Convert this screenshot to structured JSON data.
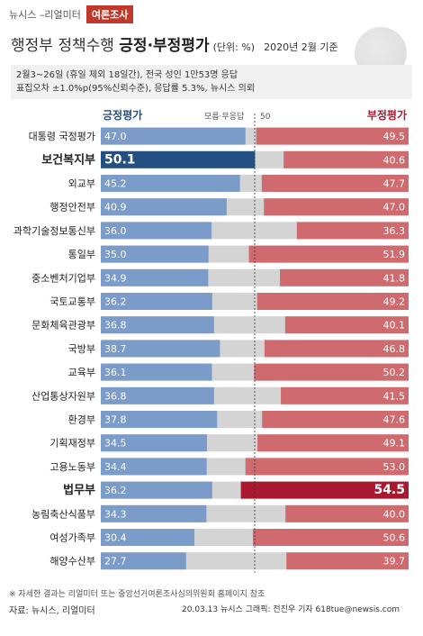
{
  "brand": "뉴시스 –리얼미터",
  "badge": "여론조사",
  "title": {
    "prefix": "행정부 정책수행 ",
    "highlight": "긍정·부정평가",
    "unit": "(단위: %)",
    "date": "2020년 2월 기준"
  },
  "info": {
    "line1": "2월3~26일 (휴일 제외 18일간), 전국 성인 1만53명 응답",
    "line2": "표집오차 ±1.0%p(95%신뢰수준), 응답률 5.3%, 뉴시스 의뢰"
  },
  "footer": {
    "note": "※ 자세한 결과는 리얼미터 또는 중앙선거여론조사심의위원회 홈페이지 참조",
    "source": "자료: 뉴시스, 리얼미터",
    "credit": "20.03.13 뉴시스 그래픽: 전진우 기자 618tue@newsis.com"
  },
  "colors": {
    "positive": "#7b9bc8",
    "positive_highlight": "#244f82",
    "negative": "#cf6b6e",
    "negative_highlight": "#a8182e",
    "neutral": "#d4d4d4"
  },
  "chart_data": {
    "type": "bar",
    "legend": {
      "positive": "긍정평가",
      "neutral": "모름·무응답",
      "negative": "부정평가",
      "midline": "50"
    },
    "categories": [
      "대통령 국정평가",
      "보건복지부",
      "외교부",
      "행정안전부",
      "과학기술정보통신부",
      "통일부",
      "중소벤처기업부",
      "국토교통부",
      "문화체육관광부",
      "국방부",
      "교육부",
      "산업통상자원부",
      "환경부",
      "기획재정부",
      "고용노동부",
      "법무부",
      "농림축산식품부",
      "여성가족부",
      "해양수산부"
    ],
    "positive_labels": [
      "47.0",
      "50.1",
      "45.2",
      "40.9",
      "36.0",
      "35.0",
      "34.9",
      "36.2",
      "36.8",
      "38.7",
      "36.1",
      "36.8",
      "37.8",
      "34.5",
      "34.4",
      "36.2",
      "34.3",
      "30.4",
      "27.7"
    ],
    "negative_labels": [
      "49.5",
      "40.6",
      "47.7",
      "47.0",
      "36.3",
      "51.9",
      "41.8",
      "49.2",
      "40.1",
      "46.8",
      "50.2",
      "41.5",
      "47.6",
      "49.1",
      "53.0",
      "54.5",
      "40.0",
      "50.6",
      "39.7"
    ],
    "highlight": [
      "보건복지부",
      "법무부"
    ],
    "xlim": [
      0,
      100
    ]
  }
}
